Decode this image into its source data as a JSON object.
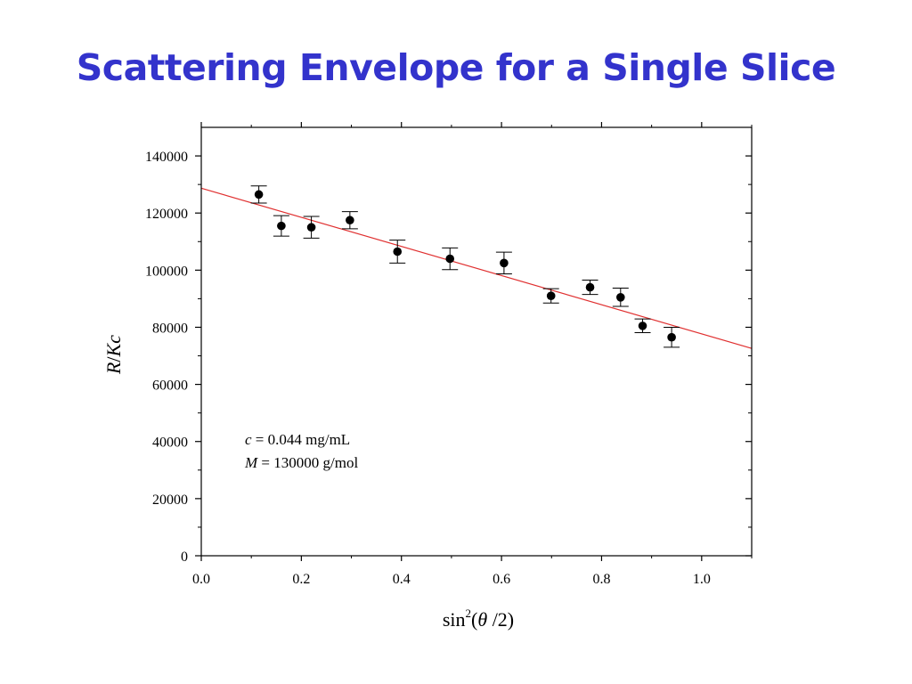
{
  "slide": {
    "title": "Scattering Envelope for a Single Slice"
  },
  "colors": {
    "title": "#3333cc",
    "fit_line": "#e03030",
    "points": "#000000"
  },
  "chart_data": {
    "type": "scatter",
    "xlabel_parts": {
      "func": "sin",
      "power": "2",
      "open": "(",
      "theta": "θ",
      "rest": " /2)"
    },
    "ylabel_parts": {
      "R": "R",
      "slash": "/",
      "K": "K",
      "c": "c"
    },
    "xlim": [
      0.0,
      1.1
    ],
    "ylim": [
      0,
      150000
    ],
    "x_ticks": [
      "0.0",
      "0.2",
      "0.4",
      "0.6",
      "0.8",
      "1.0"
    ],
    "x_tick_values": [
      0.0,
      0.2,
      0.4,
      0.6,
      0.8,
      1.0
    ],
    "y_ticks": [
      "0",
      "20000",
      "40000",
      "60000",
      "80000",
      "100000",
      "120000",
      "140000"
    ],
    "y_tick_values": [
      0,
      20000,
      40000,
      60000,
      80000,
      100000,
      120000,
      140000
    ],
    "grid": false,
    "points": [
      {
        "x": 0.115,
        "y": 126500,
        "err": 3000
      },
      {
        "x": 0.16,
        "y": 115500,
        "err": 3600
      },
      {
        "x": 0.22,
        "y": 115000,
        "err": 3800
      },
      {
        "x": 0.297,
        "y": 117500,
        "err": 3000
      },
      {
        "x": 0.392,
        "y": 106500,
        "err": 4000
      },
      {
        "x": 0.497,
        "y": 104000,
        "err": 3800
      },
      {
        "x": 0.605,
        "y": 102500,
        "err": 3800
      },
      {
        "x": 0.699,
        "y": 91000,
        "err": 2500
      },
      {
        "x": 0.777,
        "y": 94000,
        "err": 2500
      },
      {
        "x": 0.838,
        "y": 90500,
        "err": 3200
      },
      {
        "x": 0.882,
        "y": 80500,
        "err": 2400
      },
      {
        "x": 0.94,
        "y": 76500,
        "err": 3500
      }
    ],
    "fit_line": {
      "intercept": 128700,
      "slope": -51000
    },
    "annotations": [
      {
        "var": "c",
        "text": " = 0.044 mg/mL"
      },
      {
        "var": "M",
        "text": " = 130000 g/mol"
      }
    ]
  }
}
